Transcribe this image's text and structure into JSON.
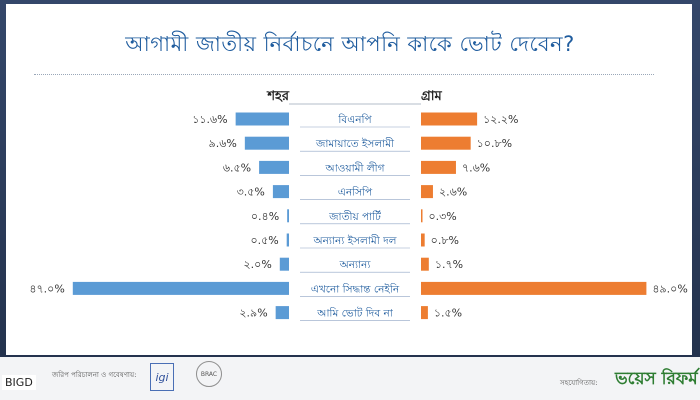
{
  "title": "আগামী জাতীয় নির্বাচনে আপনি কাকে ভোট দেবেন?",
  "colors": {
    "urban": "#5b9bd5",
    "rural": "#ed7d31",
    "title": "#1f5c9e",
    "label": "#1f5c9e",
    "value": "#333333"
  },
  "chart_data": {
    "type": "bar",
    "orientation": "horizontal",
    "title": "আগামী জাতীয় নির্বাচনে আপনি কাকে ভোট দেবেন?",
    "categories": [
      "বিএনপি",
      "জামায়াতে ইসলামী",
      "আওয়ামী লীগ",
      "এনসিপি",
      "জাতীয় পার্টি",
      "অন্যান্য ইসলামী দল",
      "অন্যান্য",
      "এখনো সিদ্ধান্ত নেইনি",
      "আমি ভোট দিব না"
    ],
    "series": [
      {
        "name": "শহর",
        "values": [
          11.6,
          9.6,
          6.5,
          3.5,
          0.4,
          0.5,
          2.0,
          47.0,
          2.9
        ],
        "labels": [
          "১১.৬%",
          "৯.৬%",
          "৬.৫%",
          "৩.৫%",
          "০.৪%",
          "০.৫%",
          "২.০%",
          "৪৭.০%",
          "২.৯%"
        ]
      },
      {
        "name": "গ্রাম",
        "values": [
          12.2,
          10.8,
          7.6,
          2.6,
          0.3,
          0.8,
          1.7,
          49.0,
          1.5
        ],
        "labels": [
          "১২.২%",
          "১০.৮%",
          "৭.৬%",
          "২.৬%",
          "০.৩%",
          "০.৮%",
          "১.৭%",
          "৪৯.০%",
          "১.৫%"
        ]
      }
    ],
    "legend": "top"
  },
  "footer": {
    "bigd": "BIGD",
    "note": "জরিপ পরিচালনা ও গবেষণায়:",
    "igi": "igi",
    "brac": "BRAC",
    "supported_by": "সহযোগিতায়:",
    "voice": "ভয়েস রিফর্ম"
  }
}
